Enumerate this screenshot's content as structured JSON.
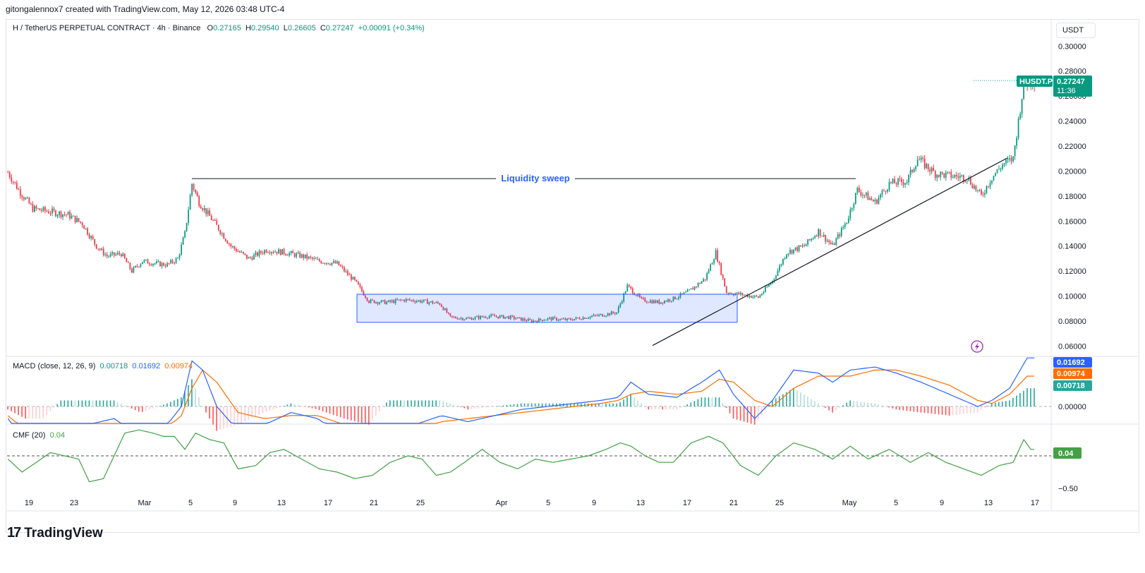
{
  "header": {
    "attribution": "gitongalennox7 created with TradingView.com, May 12, 2026 03:48 UTC-4"
  },
  "legend": {
    "symbol_line": "H / TetherUS PERPETUAL CONTRACT · 4h · Binance",
    "o_label": "O",
    "o_value": "0.27165",
    "h_label": "H",
    "h_value": "0.29540",
    "l_label": "L",
    "l_value": "0.26605",
    "c_label": "C",
    "c_value": "0.27247",
    "change": "+0.00091 (+0.34%)"
  },
  "currency_unit": "USDT",
  "macd_legend": {
    "label": "MACD (close, 12, 26, 9)",
    "hist": "0.00718",
    "macd": "0.01692",
    "signal": "0.00974"
  },
  "cmf_legend": {
    "label": "CMF (20)",
    "value": "0.04"
  },
  "footer": {
    "brand": "TradingView"
  },
  "colors": {
    "up": "#089981",
    "down": "#f23645",
    "macd": "#2962ff",
    "signal": "#ff6d00",
    "cmf": "#43a047",
    "zone": "#2962ff"
  },
  "chart_data": [
    {
      "type": "candlestick",
      "symbol_tag": "HUSDT.P",
      "last_price": "0.27247",
      "countdown": "11:36",
      "y_ticks": [
        "0.30000",
        "0.28000",
        "0.26000",
        "0.24000",
        "0.22000",
        "0.20000",
        "0.18000",
        "0.16000",
        "0.14000",
        "0.12000",
        "0.10000",
        "0.08000",
        "0.06000"
      ],
      "ylim": [
        0.058,
        0.303
      ],
      "x_ticks": [
        "19",
        "23",
        "Mar",
        "5",
        "9",
        "13",
        "17",
        "21",
        "25",
        "Apr",
        "5",
        "9",
        "13",
        "17",
        "21",
        "25",
        "May",
        "5",
        "9",
        "13",
        "17"
      ],
      "price_path": [
        [
          0,
          0.199
        ],
        [
          6,
          0.185
        ],
        [
          14,
          0.17
        ],
        [
          22,
          0.168
        ],
        [
          34,
          0.165
        ],
        [
          42,
          0.158
        ],
        [
          50,
          0.14
        ],
        [
          56,
          0.132
        ],
        [
          64,
          0.134
        ],
        [
          70,
          0.12
        ],
        [
          76,
          0.128
        ],
        [
          84,
          0.126
        ],
        [
          90,
          0.125
        ],
        [
          96,
          0.13
        ],
        [
          100,
          0.15
        ],
        [
          104,
          0.19
        ],
        [
          108,
          0.175
        ],
        [
          116,
          0.16
        ],
        [
          126,
          0.14
        ],
        [
          136,
          0.13
        ],
        [
          146,
          0.137
        ],
        [
          156,
          0.135
        ],
        [
          166,
          0.132
        ],
        [
          176,
          0.128
        ],
        [
          186,
          0.126
        ],
        [
          196,
          0.112
        ],
        [
          204,
          0.096
        ],
        [
          214,
          0.095
        ],
        [
          224,
          0.097
        ],
        [
          234,
          0.096
        ],
        [
          244,
          0.094
        ],
        [
          250,
          0.083
        ],
        [
          260,
          0.082
        ],
        [
          272,
          0.084
        ],
        [
          284,
          0.083
        ],
        [
          296,
          0.08
        ],
        [
          306,
          0.082
        ],
        [
          316,
          0.081
        ],
        [
          326,
          0.083
        ],
        [
          336,
          0.085
        ],
        [
          344,
          0.087
        ],
        [
          350,
          0.108
        ],
        [
          358,
          0.097
        ],
        [
          368,
          0.095
        ],
        [
          376,
          0.098
        ],
        [
          384,
          0.103
        ],
        [
          394,
          0.114
        ],
        [
          400,
          0.135
        ],
        [
          406,
          0.103
        ],
        [
          416,
          0.101
        ],
        [
          424,
          0.099
        ],
        [
          432,
          0.112
        ],
        [
          440,
          0.135
        ],
        [
          450,
          0.14
        ],
        [
          458,
          0.152
        ],
        [
          466,
          0.14
        ],
        [
          474,
          0.16
        ],
        [
          480,
          0.185
        ],
        [
          490,
          0.175
        ],
        [
          498,
          0.19
        ],
        [
          508,
          0.192
        ],
        [
          514,
          0.21
        ],
        [
          524,
          0.198
        ],
        [
          534,
          0.196
        ],
        [
          542,
          0.195
        ],
        [
          550,
          0.18
        ],
        [
          556,
          0.195
        ],
        [
          562,
          0.205
        ],
        [
          568,
          0.21
        ],
        [
          574,
          0.27
        ],
        [
          580,
          0.272
        ]
      ],
      "annotations": {
        "liquidity_sweep": {
          "label": "Liquidity sweep",
          "price": 0.194
        },
        "range_box": {
          "price_top": 0.1015,
          "price_bottom": 0.079
        },
        "trendline": {
          "from_price": 0.0605,
          "to_price": 0.2105
        }
      }
    },
    {
      "type": "line",
      "name": "MACD",
      "y_ticks": [
        "0.00000"
      ],
      "series": [
        {
          "name": "MACD",
          "role": "macd",
          "values": [
            [
              0,
              -0.004
            ],
            [
              10,
              -0.012
            ],
            [
              20,
              -0.018
            ],
            [
              30,
              -0.01
            ],
            [
              45,
              -0.006
            ],
            [
              60,
              -0.004
            ],
            [
              75,
              -0.01
            ],
            [
              90,
              -0.006
            ],
            [
              98,
              0.0
            ],
            [
              104,
              0.015
            ],
            [
              110,
              0.012
            ],
            [
              118,
              0.0
            ],
            [
              130,
              -0.008
            ],
            [
              145,
              -0.006
            ],
            [
              160,
              -0.002
            ],
            [
              175,
              -0.004
            ],
            [
              190,
              -0.01
            ],
            [
              204,
              -0.018
            ],
            [
              215,
              -0.01
            ],
            [
              230,
              -0.006
            ],
            [
              245,
              -0.003
            ],
            [
              260,
              -0.005
            ],
            [
              275,
              -0.003
            ],
            [
              290,
              -0.001
            ],
            [
              305,
              0.0
            ],
            [
              320,
              0.001
            ],
            [
              335,
              0.002
            ],
            [
              345,
              0.003
            ],
            [
              352,
              0.008
            ],
            [
              362,
              0.004
            ],
            [
              378,
              0.003
            ],
            [
              392,
              0.008
            ],
            [
              402,
              0.012
            ],
            [
              410,
              0.004
            ],
            [
              422,
              -0.004
            ],
            [
              432,
              0.002
            ],
            [
              444,
              0.012
            ],
            [
              458,
              0.011
            ],
            [
              466,
              0.008
            ],
            [
              476,
              0.012
            ],
            [
              490,
              0.013
            ],
            [
              502,
              0.011
            ],
            [
              516,
              0.008
            ],
            [
              532,
              0.004
            ],
            [
              548,
              0.0
            ],
            [
              556,
              0.002
            ],
            [
              566,
              0.006
            ],
            [
              576,
              0.016
            ]
          ]
        },
        {
          "name": "Signal",
          "role": "signal",
          "values": [
            [
              0,
              -0.003
            ],
            [
              10,
              -0.008
            ],
            [
              20,
              -0.014
            ],
            [
              30,
              -0.012
            ],
            [
              45,
              -0.008
            ],
            [
              60,
              -0.006
            ],
            [
              75,
              -0.008
            ],
            [
              90,
              -0.007
            ],
            [
              98,
              -0.003
            ],
            [
              104,
              0.006
            ],
            [
              110,
              0.012
            ],
            [
              118,
              0.008
            ],
            [
              130,
              -0.002
            ],
            [
              145,
              -0.004
            ],
            [
              160,
              -0.003
            ],
            [
              175,
              -0.003
            ],
            [
              190,
              -0.006
            ],
            [
              204,
              -0.012
            ],
            [
              215,
              -0.012
            ],
            [
              230,
              -0.008
            ],
            [
              245,
              -0.005
            ],
            [
              260,
              -0.004
            ],
            [
              275,
              -0.003
            ],
            [
              290,
              -0.002
            ],
            [
              305,
              -0.001
            ],
            [
              320,
              0.0
            ],
            [
              335,
              0.001
            ],
            [
              345,
              0.002
            ],
            [
              352,
              0.004
            ],
            [
              362,
              0.005
            ],
            [
              378,
              0.004
            ],
            [
              392,
              0.005
            ],
            [
              402,
              0.009
            ],
            [
              410,
              0.008
            ],
            [
              422,
              0.002
            ],
            [
              432,
              0.0
            ],
            [
              444,
              0.006
            ],
            [
              458,
              0.01
            ],
            [
              466,
              0.01
            ],
            [
              476,
              0.01
            ],
            [
              490,
              0.012
            ],
            [
              502,
              0.012
            ],
            [
              516,
              0.01
            ],
            [
              532,
              0.007
            ],
            [
              548,
              0.002
            ],
            [
              556,
              0.001
            ],
            [
              566,
              0.004
            ],
            [
              576,
              0.01
            ]
          ]
        }
      ]
    },
    {
      "type": "line",
      "name": "CMF",
      "y_ticks": [
        "−0.50"
      ],
      "series": [
        {
          "name": "CMF",
          "role": "cmf",
          "values": [
            [
              0,
              -0.05
            ],
            [
              8,
              -0.25
            ],
            [
              16,
              -0.1
            ],
            [
              24,
              0.05
            ],
            [
              32,
              0.0
            ],
            [
              40,
              -0.05
            ],
            [
              46,
              -0.4
            ],
            [
              54,
              -0.35
            ],
            [
              60,
              0.0
            ],
            [
              66,
              0.35
            ],
            [
              74,
              0.4
            ],
            [
              82,
              0.35
            ],
            [
              88,
              0.3
            ],
            [
              94,
              0.3
            ],
            [
              100,
              0.1
            ],
            [
              106,
              0.35
            ],
            [
              114,
              0.25
            ],
            [
              122,
              0.2
            ],
            [
              130,
              -0.2
            ],
            [
              140,
              -0.15
            ],
            [
              148,
              0.05
            ],
            [
              156,
              0.1
            ],
            [
              166,
              -0.05
            ],
            [
              176,
              -0.2
            ],
            [
              186,
              -0.25
            ],
            [
              196,
              -0.35
            ],
            [
              206,
              -0.3
            ],
            [
              216,
              -0.1
            ],
            [
              226,
              0.0
            ],
            [
              234,
              -0.05
            ],
            [
              242,
              -0.3
            ],
            [
              250,
              -0.25
            ],
            [
              258,
              -0.1
            ],
            [
              268,
              0.1
            ],
            [
              278,
              -0.1
            ],
            [
              288,
              -0.2
            ],
            [
              298,
              -0.05
            ],
            [
              308,
              -0.1
            ],
            [
              318,
              -0.05
            ],
            [
              328,
              0.0
            ],
            [
              338,
              0.1
            ],
            [
              346,
              0.2
            ],
            [
              352,
              0.15
            ],
            [
              360,
              0.0
            ],
            [
              368,
              -0.1
            ],
            [
              376,
              -0.1
            ],
            [
              386,
              0.2
            ],
            [
              396,
              0.3
            ],
            [
              404,
              0.2
            ],
            [
              414,
              -0.15
            ],
            [
              424,
              -0.3
            ],
            [
              434,
              0.0
            ],
            [
              444,
              0.2
            ],
            [
              456,
              0.1
            ],
            [
              466,
              -0.05
            ],
            [
              476,
              0.15
            ],
            [
              486,
              -0.05
            ],
            [
              498,
              0.1
            ],
            [
              510,
              -0.1
            ],
            [
              520,
              0.05
            ],
            [
              530,
              -0.1
            ],
            [
              540,
              -0.2
            ],
            [
              550,
              -0.3
            ],
            [
              560,
              -0.15
            ],
            [
              568,
              -0.1
            ],
            [
              574,
              0.25
            ],
            [
              578,
              0.1
            ]
          ]
        }
      ]
    }
  ]
}
